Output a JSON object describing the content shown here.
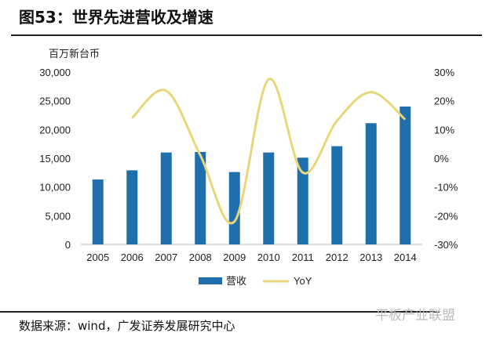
{
  "title": "图53：世界先进营收及增速",
  "source": "数据来源：wind，广发证券发展研究中心",
  "watermark": "平板产业联盟",
  "chart_data": {
    "type": "bar+line",
    "ylabel": "百万新台币",
    "categories": [
      "2005",
      "2006",
      "2007",
      "2008",
      "2009",
      "2010",
      "2011",
      "2012",
      "2013",
      "2014"
    ],
    "series": [
      {
        "name": "营收",
        "type": "bar",
        "axis": "left",
        "color": "#1f6fad",
        "values": [
          11300,
          12900,
          16000,
          16100,
          12600,
          16000,
          15100,
          17100,
          21100,
          24000
        ]
      },
      {
        "name": "YoY",
        "type": "line",
        "axis": "right",
        "color": "#e8d77a",
        "values": [
          null,
          14,
          23.5,
          1,
          -22,
          27.5,
          -5,
          13,
          23,
          13.5
        ]
      }
    ],
    "ylim": [
      0,
      30000
    ],
    "yticks": [
      "0",
      "5,000",
      "10,000",
      "15,000",
      "20,000",
      "25,000",
      "30,000"
    ],
    "y2lim": [
      -30,
      30
    ],
    "y2ticks": [
      "-30%",
      "-20%",
      "-10%",
      "0%",
      "10%",
      "20%",
      "30%"
    ],
    "legend": "bottom"
  }
}
